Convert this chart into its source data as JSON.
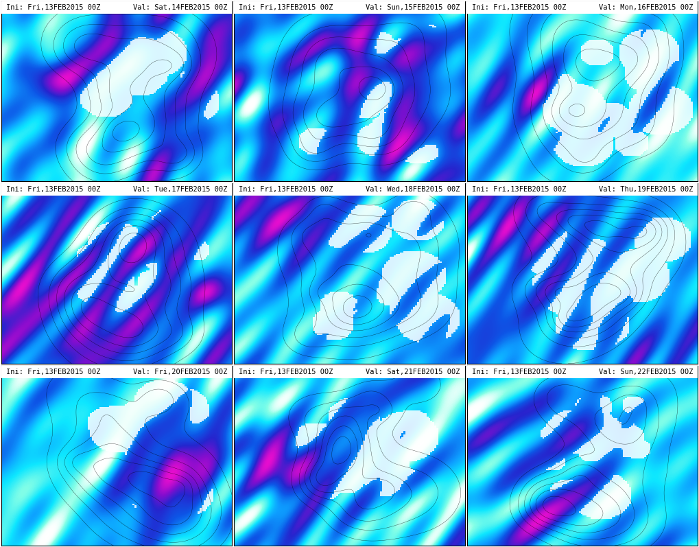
{
  "figsize": [
    10.19,
    7.97
  ],
  "dpi": 100,
  "background_color": "#ffffff",
  "grid_rows": 3,
  "grid_cols": 3,
  "panels": [
    {
      "row": 0,
      "col": 0,
      "ini_text": "Ini: Fri,13FEB2015 00Z",
      "val_text": "Val: Sat,14FEB2015 00Z"
    },
    {
      "row": 0,
      "col": 1,
      "ini_text": "Ini: Fri,13FEB2015 00Z",
      "val_text": "Val: Sun,15FEB2015 00Z"
    },
    {
      "row": 0,
      "col": 2,
      "ini_text": "Ini: Fri,13FEB2015 00Z",
      "val_text": "Val: Mon,16FEB2015 00Z"
    },
    {
      "row": 1,
      "col": 0,
      "ini_text": "Ini: Fri,13FEB2015 00Z",
      "val_text": "Val: Tue,17FEB2015 00Z"
    },
    {
      "row": 1,
      "col": 1,
      "ini_text": "Ini: Fri,13FEB2015 00Z",
      "val_text": "Val: Wed,18FEB2015 00Z"
    },
    {
      "row": 1,
      "col": 2,
      "ini_text": "Ini: Fri,13FEB2015 00Z",
      "val_text": "Val: Thu,19FEB2015 00Z"
    },
    {
      "row": 2,
      "col": 0,
      "ini_text": "Ini: Fri,13FEB2015 00Z",
      "val_text": "Val: Fri,20FEB2015 00Z"
    },
    {
      "row": 2,
      "col": 1,
      "ini_text": "Ini: Fri,13FEB2015 00Z",
      "val_text": "Val: Sat,21FEB2015 00Z"
    },
    {
      "row": 2,
      "col": 2,
      "ini_text": "Ini: Fri,13FEB2015 00Z",
      "val_text": "Val: Sun,22FEB2015 00Z"
    }
  ],
  "header_bg_color": "#d0f0f0",
  "header_text_color": "#000000",
  "header_font_size": 7.5,
  "map_bg_color": "#ffffff",
  "ocean_color_light": "#7fdfff",
  "ocean_color_mid": "#00aaff",
  "ocean_color_deep": "#0055cc",
  "wind_color_1": "#00ffff",
  "wind_color_2": "#0077ff",
  "wind_color_3": "#8800cc",
  "land_color": "#ffffff",
  "border_color": "#000000"
}
